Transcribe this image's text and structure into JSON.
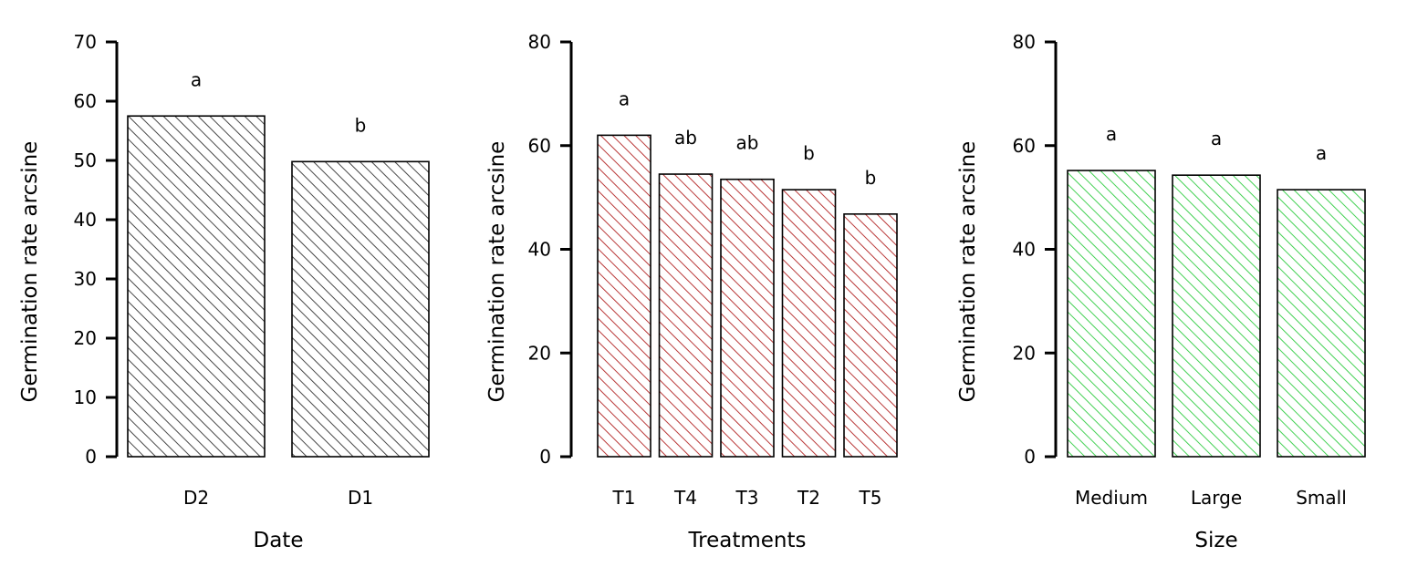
{
  "chart_data": [
    {
      "type": "bar",
      "categories": [
        "D2",
        "D1"
      ],
      "values": [
        57.5,
        49.8
      ],
      "significance_letters": [
        "a",
        "b"
      ],
      "xlabel": "Date",
      "ylabel": "Germination rate arcsine",
      "ylim": [
        0,
        70
      ],
      "yticks": [
        0,
        10,
        20,
        30,
        40,
        50,
        60,
        70
      ],
      "bar_color": "#333333",
      "fill": "diagonal hatch",
      "grid": false
    },
    {
      "type": "bar",
      "categories": [
        "T1",
        "T4",
        "T3",
        "T2",
        "T5"
      ],
      "values": [
        62.0,
        54.5,
        53.5,
        51.5,
        46.8
      ],
      "significance_letters": [
        "a",
        "ab",
        "ab",
        "b",
        "b"
      ],
      "xlabel": "Treatments",
      "ylabel": "Germination rate arcsine",
      "ylim": [
        0,
        80
      ],
      "yticks": [
        0,
        20,
        40,
        60,
        80
      ],
      "bar_color": "#b22222",
      "fill": "diagonal hatch",
      "grid": false
    },
    {
      "type": "bar",
      "categories": [
        "Medium",
        "Large",
        "Small"
      ],
      "values": [
        55.2,
        54.3,
        51.5
      ],
      "significance_letters": [
        "a",
        "a",
        "a"
      ],
      "xlabel": "Size",
      "ylabel": "Germination rate arcsine",
      "ylim": [
        0,
        80
      ],
      "yticks": [
        0,
        20,
        40,
        60,
        80
      ],
      "bar_color": "#2ecc40",
      "fill": "diagonal hatch",
      "grid": false
    }
  ]
}
